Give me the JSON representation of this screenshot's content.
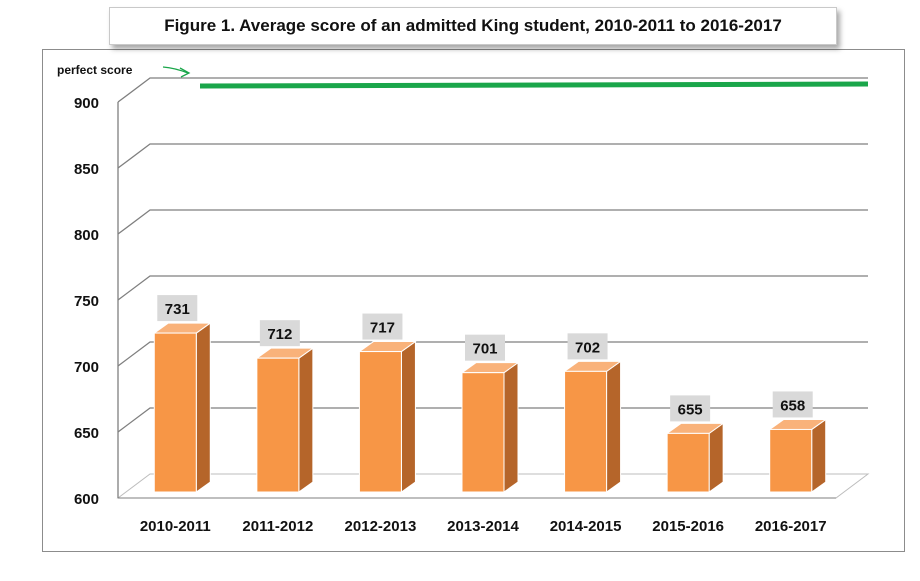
{
  "chart_data": {
    "type": "bar",
    "title": "Figure 1. Average score of an admitted King student, 2010-2011 to 2016-2017",
    "xlabel": "",
    "ylabel": "",
    "categories": [
      "2010-2011",
      "2011-2012",
      "2012-2013",
      "2013-2014",
      "2014-2015",
      "2015-2016",
      "2016-2017"
    ],
    "values": [
      731,
      712,
      717,
      701,
      702,
      655,
      658
    ],
    "ylim": [
      600,
      900
    ],
    "yticks": [
      600,
      650,
      700,
      750,
      800,
      850,
      900
    ],
    "grid": true,
    "reference_line": {
      "value": 910,
      "label": "perfect score",
      "color": "#1aa64a"
    },
    "bar_color": "#f79646",
    "bar_side_color": "#b5652a"
  }
}
